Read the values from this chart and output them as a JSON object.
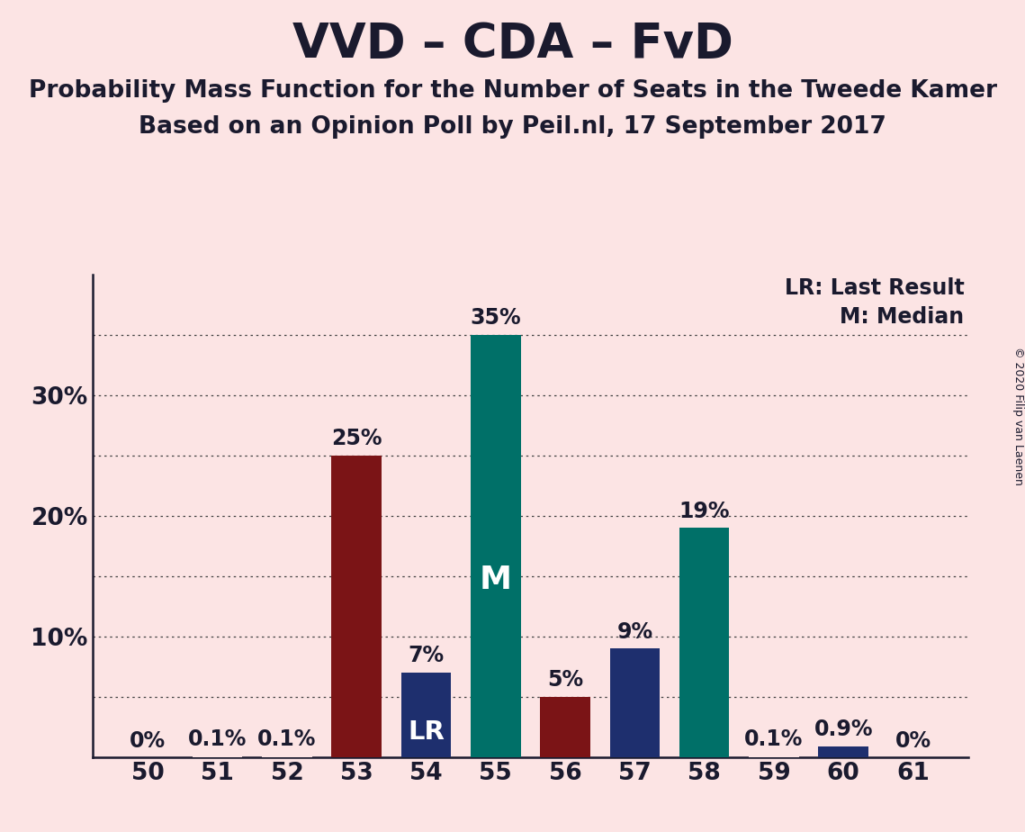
{
  "title": "VVD – CDA – FvD",
  "subtitle1": "Probability Mass Function for the Number of Seats in the Tweede Kamer",
  "subtitle2": "Based on an Opinion Poll by Peil.nl, 17 September 2017",
  "copyright": "© 2020 Filip van Laenen",
  "categories": [
    50,
    51,
    52,
    53,
    54,
    55,
    56,
    57,
    58,
    59,
    60,
    61
  ],
  "values": [
    0.0,
    0.1,
    0.1,
    25.0,
    7.0,
    35.0,
    5.0,
    9.0,
    19.0,
    0.1,
    0.9,
    0.0
  ],
  "labels": [
    "0%",
    "0.1%",
    "0.1%",
    "25%",
    "7%",
    "35%",
    "5%",
    "9%",
    "19%",
    "0.1%",
    "0.9%",
    "0%"
  ],
  "bar_colors": [
    "#fce4e4",
    "#fce4e4",
    "#fce4e4",
    "#7b1416",
    "#1e2f6e",
    "#007068",
    "#7b1416",
    "#1e2f6e",
    "#007068",
    "#fce4e4",
    "#1e2f6e",
    "#fce4e4"
  ],
  "median_bar": 55,
  "lr_bar": 54,
  "legend_lr": "LR: Last Result",
  "legend_m": "M: Median",
  "background_color": "#fce4e4",
  "ylim": [
    0,
    40
  ],
  "ytick_positions": [
    0,
    10,
    20,
    30
  ],
  "ytick_labels": [
    "",
    "10%",
    "20%",
    "30%"
  ],
  "dotted_lines": [
    5,
    10,
    15,
    20,
    25,
    30,
    35
  ],
  "solid_lines": [],
  "title_fontsize": 38,
  "subtitle_fontsize": 19,
  "label_fontsize": 17,
  "tick_fontsize": 19,
  "bar_width": 0.72
}
